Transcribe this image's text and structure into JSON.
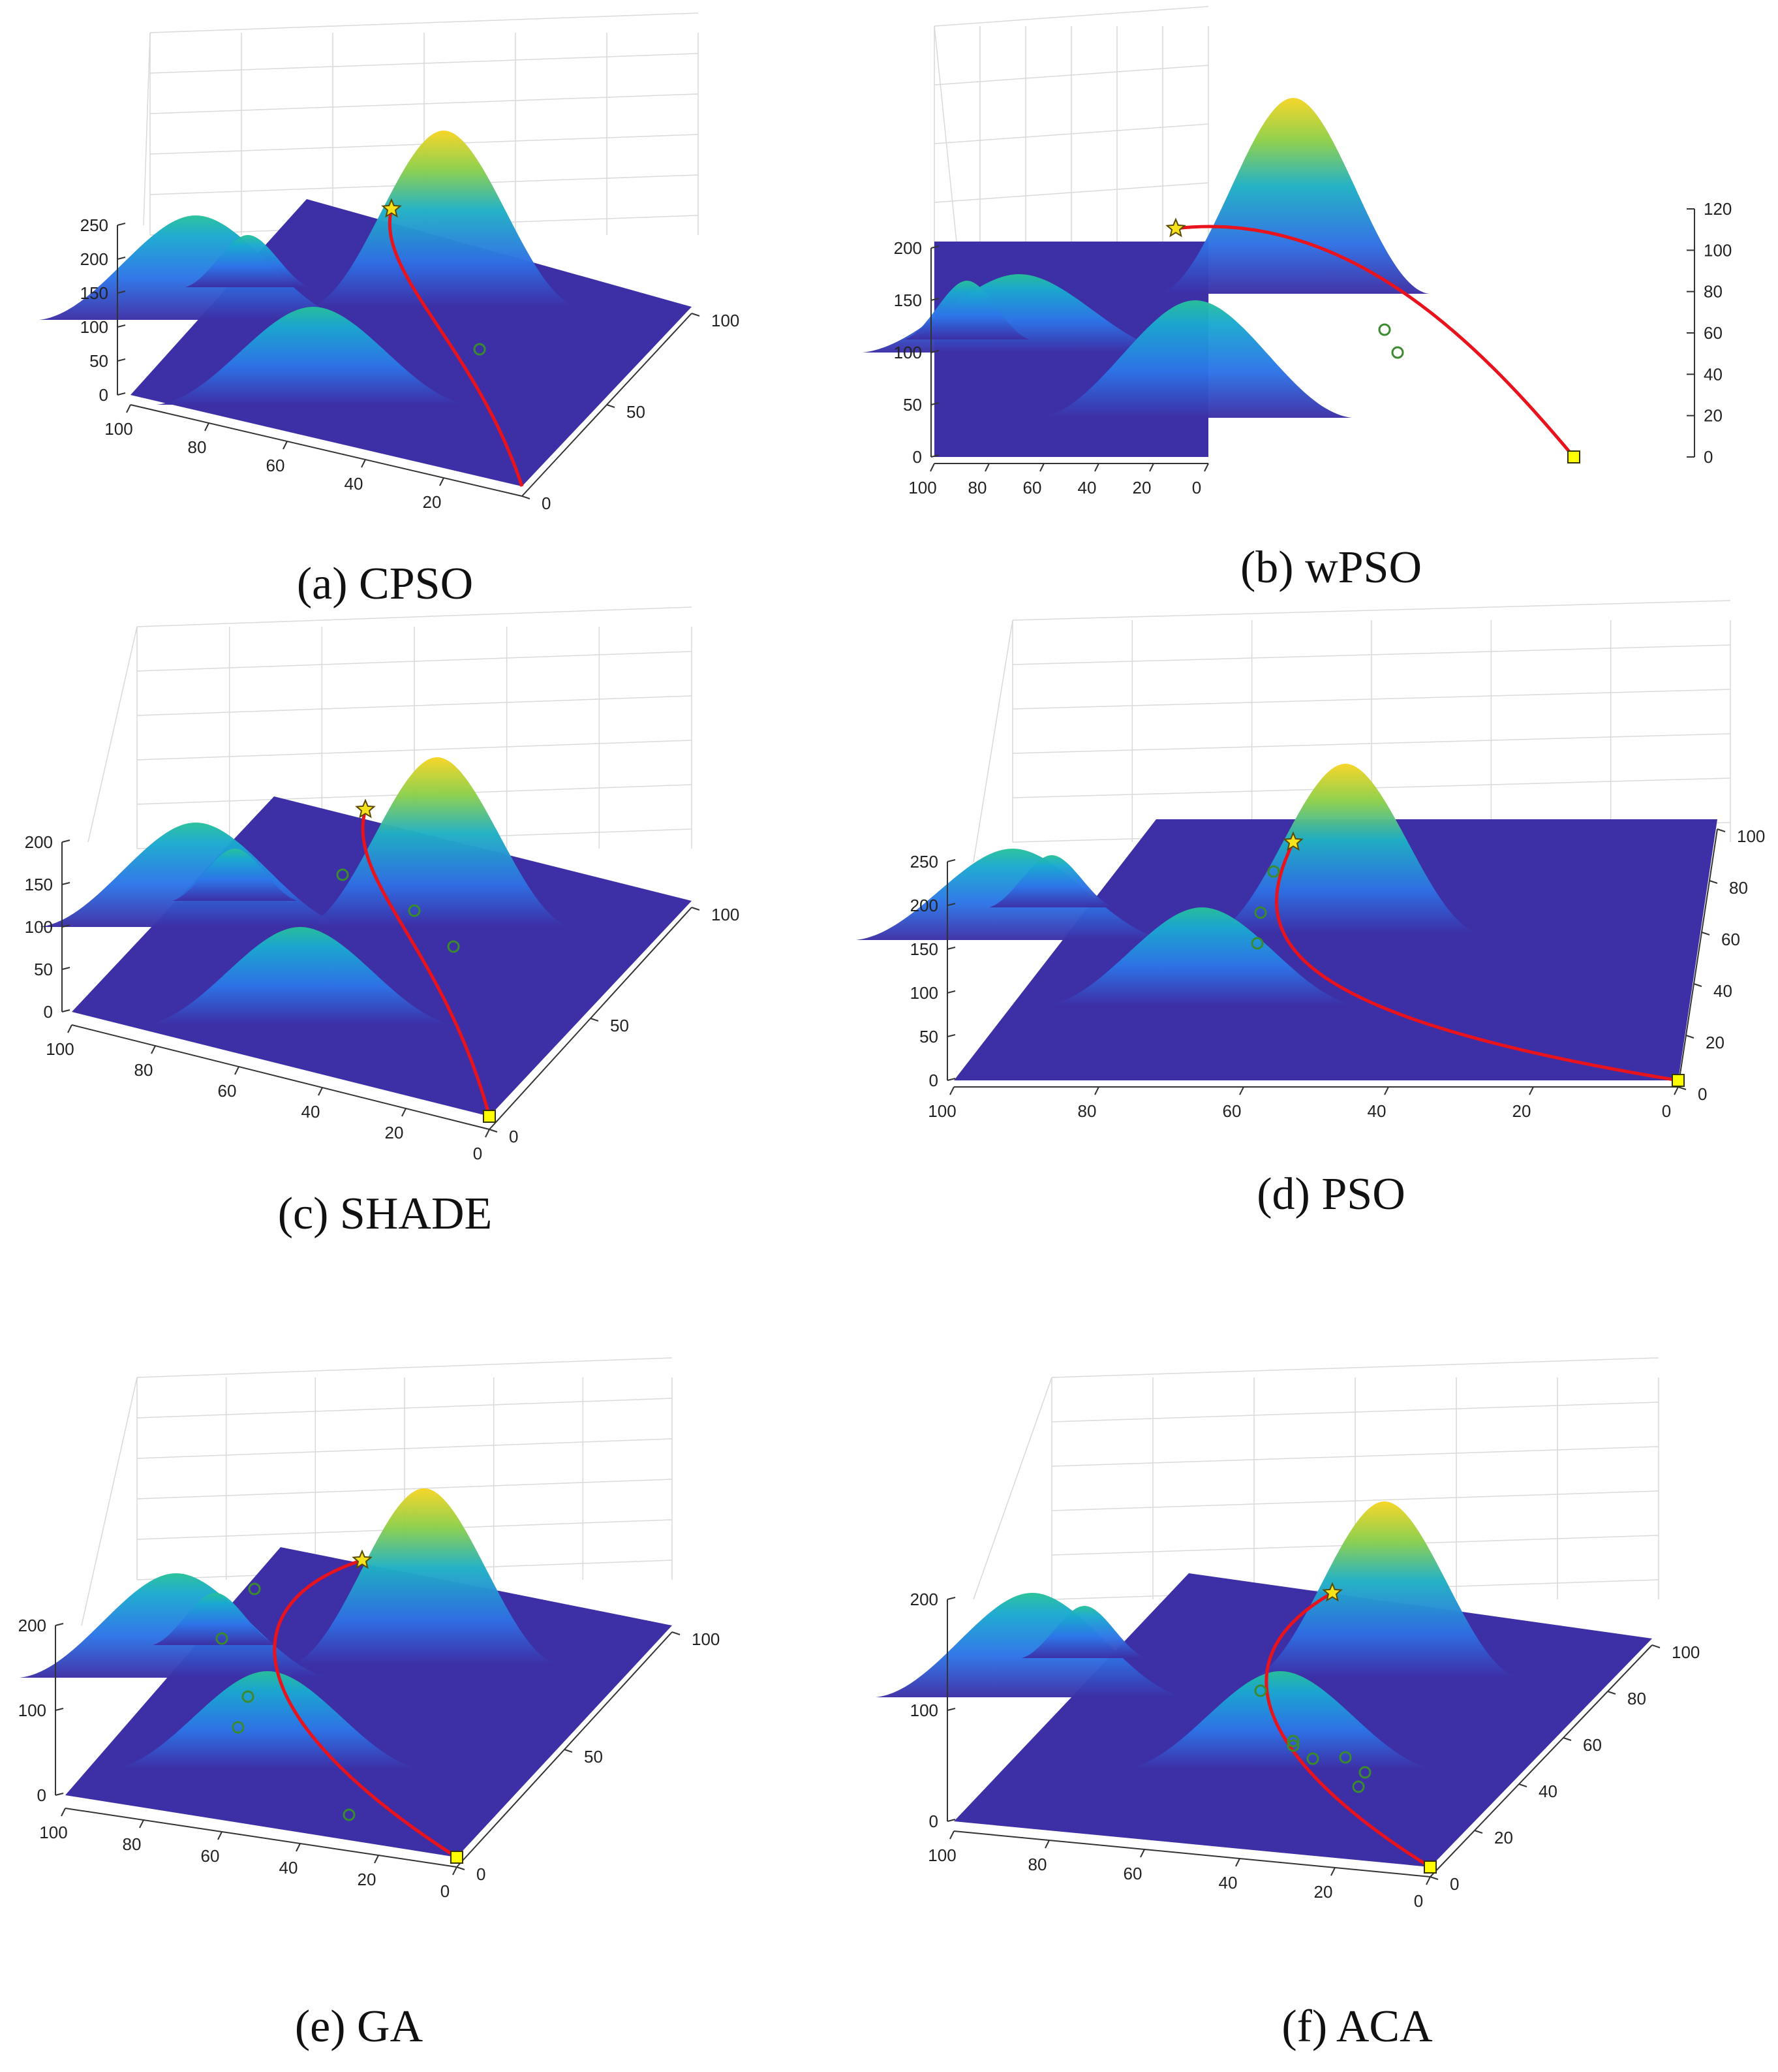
{
  "colors": {
    "floor": "#3d2fa6",
    "path": "#e8131c",
    "waypoint_edge": "#3a8a2e",
    "start_marker": "#f5e21b",
    "end_marker": "#ffff00",
    "grid": "#d9d9d9",
    "axis": "#333333"
  },
  "chart_data": [
    {
      "id": "a",
      "caption": "(a) CPSO",
      "type": "surface",
      "z_ticks": [
        "0",
        "50",
        "100",
        "150",
        "200",
        "250"
      ],
      "x_ticks": [
        "100",
        "80",
        "60",
        "40",
        "20"
      ],
      "y_ticks": [
        "0",
        "50",
        "100"
      ],
      "path_waypoints": 2,
      "start_marker": "star",
      "end_marker": "square"
    },
    {
      "id": "b",
      "caption": "(b) wPSO",
      "type": "surface",
      "z_ticks": [
        "0",
        "50",
        "100",
        "150",
        "200"
      ],
      "z_ticks_right": [
        "0",
        "20",
        "40",
        "60",
        "80",
        "100",
        "120"
      ],
      "x_ticks": [
        "100",
        "80",
        "60",
        "40",
        "20",
        "0"
      ],
      "path_waypoints": 2,
      "start_marker": "star",
      "end_marker": "square"
    },
    {
      "id": "c",
      "caption": "(c) SHADE",
      "type": "surface",
      "z_ticks": [
        "0",
        "50",
        "100",
        "150",
        "200"
      ],
      "x_ticks": [
        "100",
        "80",
        "60",
        "40",
        "20",
        "0"
      ],
      "y_ticks": [
        "0",
        "50",
        "100"
      ],
      "path_waypoints": 3,
      "start_marker": "star",
      "end_marker": "square"
    },
    {
      "id": "d",
      "caption": "(d) PSO",
      "type": "surface",
      "z_ticks": [
        "0",
        "50",
        "100",
        "150",
        "200",
        "250"
      ],
      "x_ticks": [
        "100",
        "80",
        "60",
        "40",
        "20",
        "0"
      ],
      "y_ticks": [
        "0",
        "20",
        "40",
        "60",
        "80",
        "100"
      ],
      "path_waypoints": 3,
      "start_marker": "star",
      "end_marker": "square"
    },
    {
      "id": "e",
      "caption": "(e) GA",
      "type": "surface",
      "z_ticks": [
        "0",
        "100",
        "200"
      ],
      "x_ticks": [
        "100",
        "80",
        "60",
        "40",
        "20",
        "0"
      ],
      "y_ticks": [
        "0",
        "50",
        "100"
      ],
      "path_waypoints": 5,
      "start_marker": "star",
      "end_marker": "square"
    },
    {
      "id": "f",
      "caption": "(f) ACA",
      "type": "surface",
      "z_ticks": [
        "0",
        "100",
        "200"
      ],
      "x_ticks": [
        "100",
        "80",
        "60",
        "40",
        "20",
        "0"
      ],
      "y_ticks": [
        "0",
        "20",
        "40",
        "60",
        "80",
        "100"
      ],
      "path_waypoints": 7,
      "start_marker": "star",
      "end_marker": "square"
    }
  ]
}
